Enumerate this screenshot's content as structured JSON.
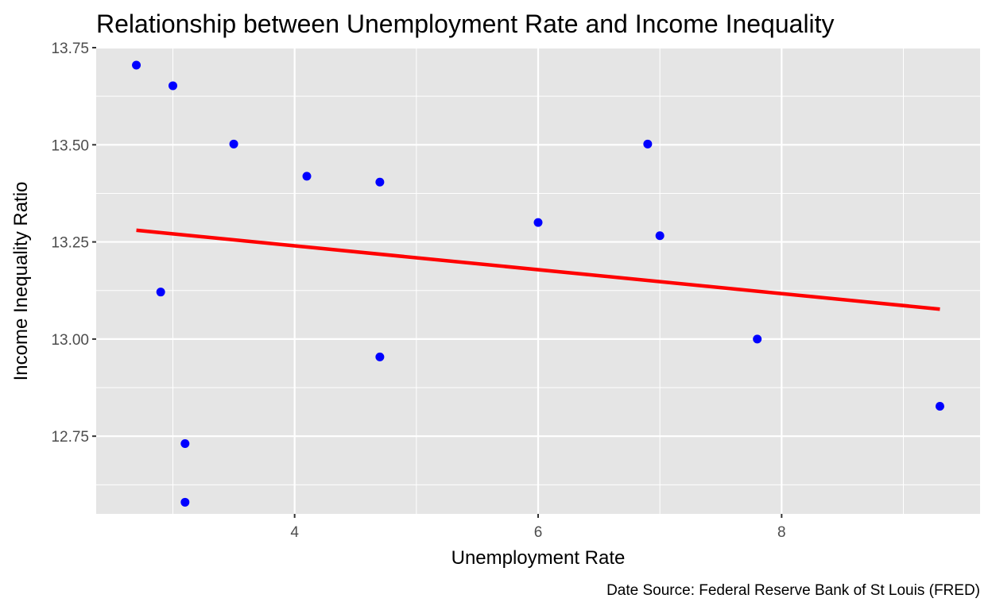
{
  "chart_data": {
    "type": "scatter",
    "title": "Relationship between Unemployment Rate and Income Inequality",
    "xlabel": "Unemployment Rate",
    "ylabel": "Income Inequality Ratio",
    "caption": "Date Source: Federal Reserve Bank of St Louis (FRED)",
    "xlim": [
      2.37,
      9.63
    ],
    "ylim": [
      12.55,
      13.75
    ],
    "x_ticks": [
      4,
      6,
      8
    ],
    "x_tick_labels": [
      "4",
      "6",
      "8"
    ],
    "x_minor_ticks": [
      3,
      5,
      7,
      9
    ],
    "y_ticks": [
      12.75,
      13.0,
      13.25,
      13.5,
      13.75
    ],
    "y_tick_labels": [
      "12.75",
      "13.00",
      "13.25",
      "13.50",
      "13.75"
    ],
    "y_minor_ticks": [
      12.625,
      12.875,
      13.125,
      13.375,
      13.625
    ],
    "grid": true,
    "panel_background": "#e5e5e5",
    "grid_color": "#ffffff",
    "point_color": "#0000ff",
    "line_color": "#ff0000",
    "points": [
      {
        "x": 2.7,
        "y": 13.705
      },
      {
        "x": 3.0,
        "y": 13.652
      },
      {
        "x": 3.5,
        "y": 13.502
      },
      {
        "x": 4.1,
        "y": 13.419
      },
      {
        "x": 4.7,
        "y": 13.404
      },
      {
        "x": 6.0,
        "y": 13.3
      },
      {
        "x": 6.9,
        "y": 13.502
      },
      {
        "x": 7.0,
        "y": 13.266
      },
      {
        "x": 2.9,
        "y": 13.121
      },
      {
        "x": 4.7,
        "y": 12.954
      },
      {
        "x": 7.8,
        "y": 13.0
      },
      {
        "x": 9.3,
        "y": 12.827
      },
      {
        "x": 3.1,
        "y": 12.731
      },
      {
        "x": 3.1,
        "y": 12.58
      }
    ],
    "trend_line": {
      "x": [
        2.7,
        9.3
      ],
      "y": [
        13.28,
        13.077
      ]
    }
  }
}
